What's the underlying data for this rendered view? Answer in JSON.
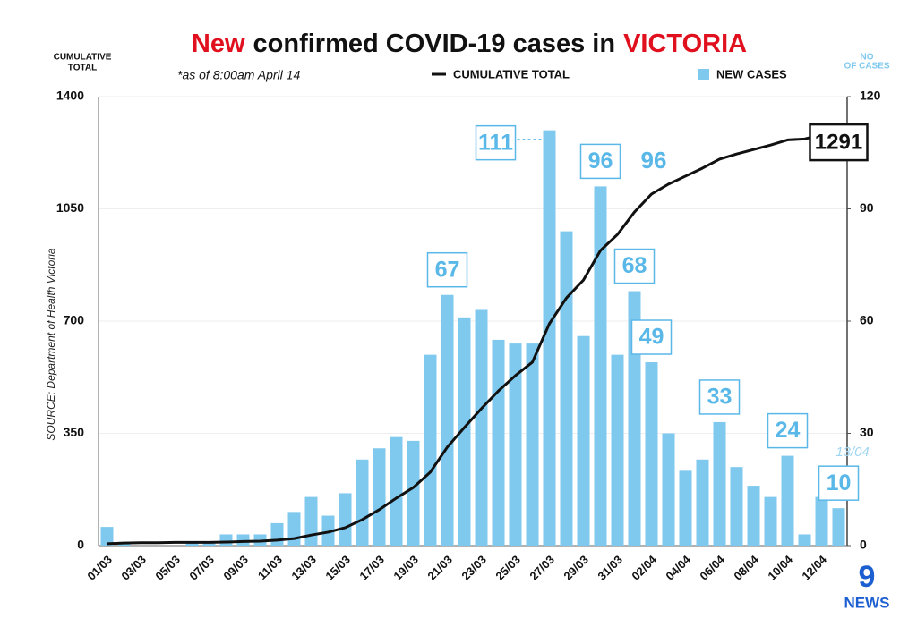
{
  "chart_data": {
    "type": "bar-line",
    "title_parts": [
      {
        "text": "New",
        "color": "#e0101e"
      },
      {
        "text": "confirmed COVID-19 cases in",
        "color": "#111111"
      },
      {
        "text": "VICTORIA",
        "color": "#e0101e"
      }
    ],
    "subtitle": "*as of 8:00am April 14",
    "y_label": [
      "CUMULATIVE",
      "TOTAL"
    ],
    "y2_label": [
      "NO",
      "OF CASES"
    ],
    "source": "SOURCE: Department of Health Victoria",
    "logo": [
      "9",
      "NEWS"
    ],
    "annotations": [
      "96",
      "13/04"
    ],
    "categories": [
      "01/03",
      null,
      "03/03",
      null,
      "05/03",
      null,
      "07/03",
      null,
      "09/03",
      null,
      "11/03",
      null,
      "13/03",
      null,
      "15/03",
      null,
      "17/03",
      null,
      "19/03",
      null,
      "21/03",
      null,
      "23/03",
      null,
      "25/03",
      null,
      "27/03",
      null,
      "29/03",
      null,
      "31/03",
      null,
      "02/04",
      null,
      "04/04",
      null,
      "06/04",
      null,
      "08/04",
      null,
      "10/04",
      null,
      "12/04",
      null
    ],
    "series": [
      {
        "name": "CUMULATIVE TOTAL",
        "type": "line",
        "axis": "y",
        "color": "#111111",
        "values": [
          6,
          8,
          9,
          9,
          10,
          10,
          10,
          11,
          13,
          14,
          17,
          22,
          33,
          42,
          56,
          81,
          112,
          148,
          181,
          229,
          307,
          368,
          427,
          482,
          530,
          572,
          692,
          772,
          828,
          920,
          970,
          1040,
          1096,
          1127,
          1152,
          1177,
          1205,
          1221,
          1235,
          1249,
          1265,
          1268,
          1281,
          1291
        ]
      },
      {
        "name": "NEW CASES",
        "type": "bar",
        "axis": "y2",
        "color": "#80c9ee",
        "values": [
          5,
          1,
          0,
          0,
          0,
          1,
          1,
          3,
          3,
          3,
          6,
          9,
          13,
          8,
          14,
          23,
          26,
          29,
          28,
          51,
          67,
          61,
          63,
          55,
          54,
          54,
          111,
          84,
          56,
          96,
          51,
          68,
          49,
          30,
          20,
          23,
          33,
          21,
          16,
          13,
          24,
          3,
          13,
          10
        ]
      }
    ],
    "ylim": [
      0,
      1400
    ],
    "yticks": [
      0,
      350,
      700,
      1050,
      1400
    ],
    "y2lim": [
      0,
      120
    ],
    "y2ticks": [
      0,
      30,
      60,
      90,
      120
    ],
    "grid": true,
    "label_color": "#5ab8e8"
  }
}
